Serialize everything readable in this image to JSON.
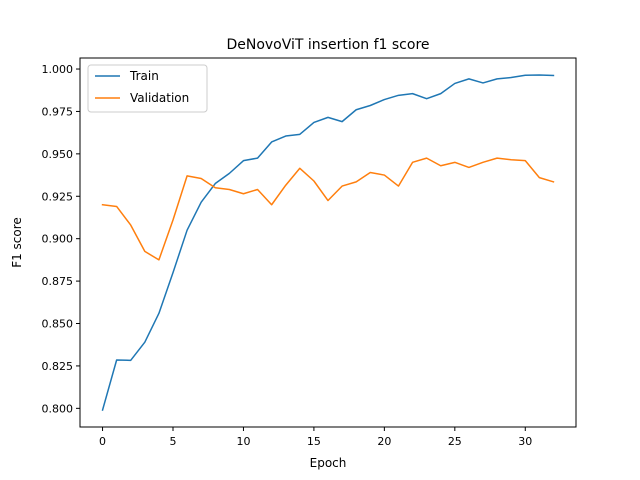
{
  "chart_data": {
    "type": "line",
    "title": "DeNovoViT insertion f1 score",
    "xlabel": "Epoch",
    "ylabel": "F1 score",
    "xlim": [
      -1.6,
      33.6
    ],
    "ylim": [
      0.789,
      1.0065
    ],
    "xticks": [
      0,
      5,
      10,
      15,
      20,
      25,
      30
    ],
    "yticks": [
      0.8,
      0.825,
      0.85,
      0.875,
      0.9,
      0.925,
      0.95,
      0.975,
      1.0
    ],
    "xtick_labels": [
      "0",
      "5",
      "10",
      "15",
      "20",
      "25",
      "30"
    ],
    "ytick_labels": [
      "0.800",
      "0.825",
      "0.850",
      "0.875",
      "0.900",
      "0.925",
      "0.950",
      "0.975",
      "1.000"
    ],
    "grid": false,
    "legend_position": "top-left",
    "x": [
      0,
      1,
      2,
      3,
      4,
      5,
      6,
      7,
      8,
      9,
      10,
      11,
      12,
      13,
      14,
      15,
      16,
      17,
      18,
      19,
      20,
      21,
      22,
      23,
      24,
      25,
      26,
      27,
      28,
      29,
      30,
      31,
      32
    ],
    "series": [
      {
        "name": "Train",
        "color": "#1f77b4",
        "values": [
          0.799,
          0.8285,
          0.8283,
          0.839,
          0.856,
          0.88,
          0.905,
          0.9215,
          0.9325,
          0.9385,
          0.946,
          0.9475,
          0.957,
          0.9605,
          0.9615,
          0.9685,
          0.9715,
          0.969,
          0.976,
          0.9785,
          0.982,
          0.9845,
          0.9855,
          0.9825,
          0.9855,
          0.9915,
          0.9942,
          0.9918,
          0.9942,
          0.995,
          0.9963,
          0.9965,
          0.9962
        ]
      },
      {
        "name": "Validation",
        "color": "#ff7f0e",
        "values": [
          0.92,
          0.919,
          0.908,
          0.8925,
          0.8875,
          0.911,
          0.937,
          0.9355,
          0.93,
          0.929,
          0.9265,
          0.929,
          0.92,
          0.9315,
          0.9415,
          0.934,
          0.9225,
          0.931,
          0.9335,
          0.939,
          0.9375,
          0.931,
          0.945,
          0.9475,
          0.943,
          0.945,
          0.942,
          0.945,
          0.9475,
          0.9465,
          0.946,
          0.936,
          0.9335
        ]
      }
    ]
  }
}
